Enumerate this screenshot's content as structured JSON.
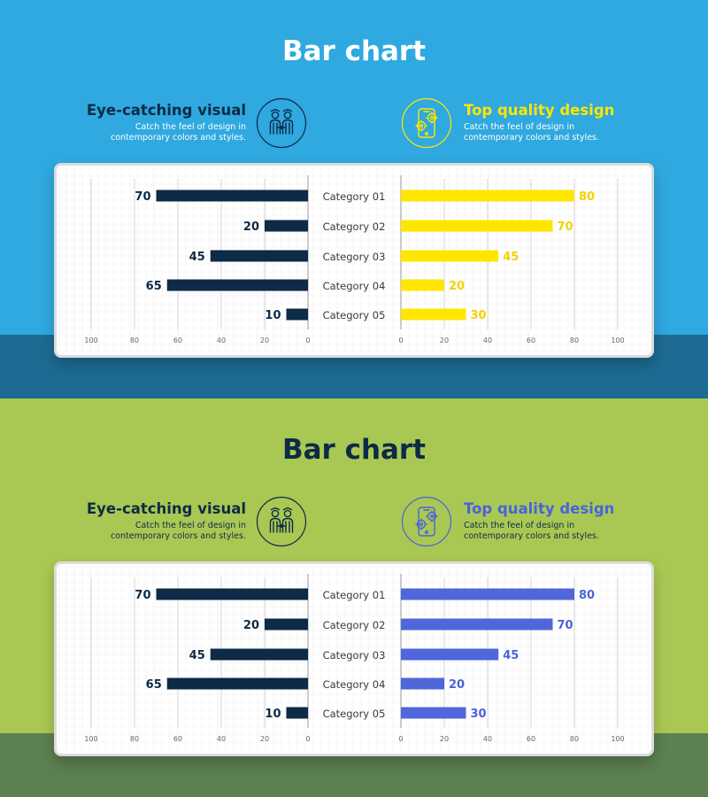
{
  "panels": [
    {
      "title": "Bar chart",
      "left_feature": {
        "heading": "Eye-catching visual",
        "description": "Catch the feel of design in contemporary colors and styles.",
        "icon": "people-icon"
      },
      "right_feature": {
        "heading": "Top quality design",
        "description": "Catch the feel of design in contemporary colors and styles.",
        "icon": "mobile-settings-icon"
      },
      "colors": {
        "bg_top": "#2fa9e0",
        "bg_bottom": "#1d6b93",
        "title": "#ffffff",
        "left_heading": "#0d2a47",
        "right_heading": "#ffe600",
        "description": "#ffffff",
        "left_icon": "#0d2a47",
        "right_icon": "#ffe600",
        "left_bar": "#0d2a47",
        "right_bar": "#ffe600",
        "left_value": "#0d2a47",
        "right_value": "#f2d300",
        "category_text": "#3a3a3a"
      }
    },
    {
      "title": "Bar chart",
      "left_feature": {
        "heading": "Eye-catching visual",
        "description": "Catch the feel of design in contemporary colors and styles.",
        "icon": "people-icon"
      },
      "right_feature": {
        "heading": "Top quality design",
        "description": "Catch the feel of design in contemporary colors and styles.",
        "icon": "mobile-settings-icon"
      },
      "colors": {
        "bg_top": "#a9c853",
        "bg_bottom": "#5c8050",
        "title": "#0d2a47",
        "left_heading": "#0d2a47",
        "right_heading": "#4a63d9",
        "description": "#0d2a47",
        "left_icon": "#0d2a47",
        "right_icon": "#4a63d9",
        "left_bar": "#0d2a47",
        "right_bar": "#5066db",
        "left_value": "#0d2a47",
        "right_value": "#4a63d9",
        "category_text": "#3a3a3a"
      }
    }
  ],
  "chart_data": [
    {
      "type": "bar",
      "categories": [
        "Category 01",
        "Category 02",
        "Category 03",
        "Category 04",
        "Category 05"
      ],
      "series": [
        {
          "values": [
            70,
            20,
            45,
            65,
            10
          ]
        },
        {
          "values": [
            80,
            70,
            45,
            20,
            30
          ]
        }
      ],
      "left_ticks": [
        "100",
        "80",
        "60",
        "40",
        "20",
        "0"
      ],
      "right_ticks": [
        "0",
        "20",
        "40",
        "60",
        "80",
        "100"
      ],
      "xlim": [
        0,
        100
      ],
      "grid": true
    },
    {
      "type": "bar",
      "categories": [
        "Category 01",
        "Category 02",
        "Category 03",
        "Category 04",
        "Category 05"
      ],
      "series": [
        {
          "values": [
            70,
            20,
            45,
            65,
            10
          ]
        },
        {
          "values": [
            80,
            70,
            45,
            20,
            30
          ]
        }
      ],
      "left_ticks": [
        "100",
        "80",
        "60",
        "40",
        "20",
        "0"
      ],
      "right_ticks": [
        "0",
        "20",
        "40",
        "60",
        "80",
        "100"
      ],
      "xlim": [
        0,
        100
      ],
      "grid": true
    }
  ]
}
